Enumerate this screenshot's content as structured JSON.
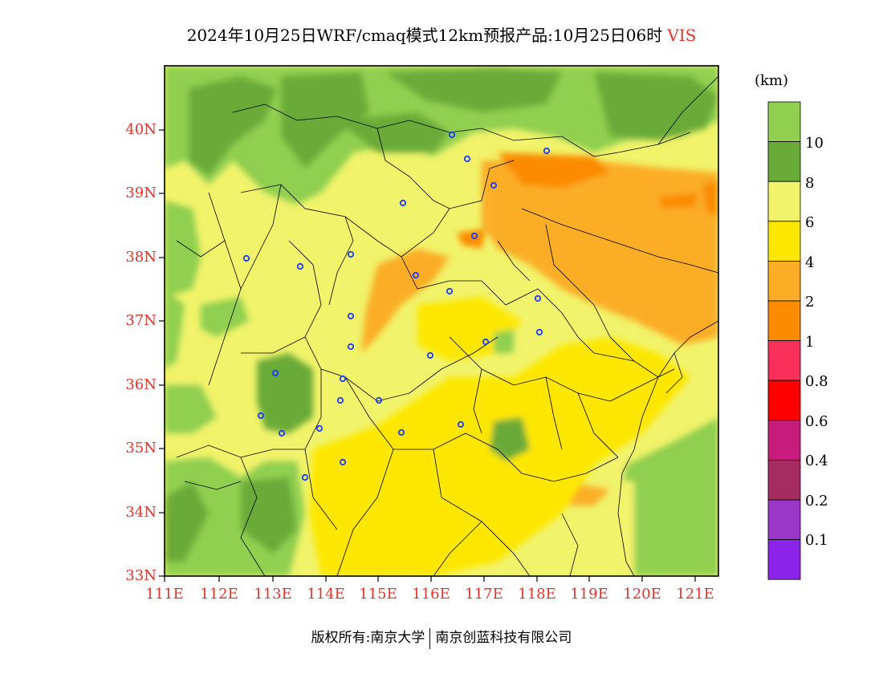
{
  "title": {
    "text": "2024年10月25日WRF/cmaq模式12km预报产品:10月25日06时",
    "variable": "VIS"
  },
  "map": {
    "lat_labels": [
      "40N",
      "39N",
      "38N",
      "37N",
      "36N",
      "35N",
      "34N",
      "33N"
    ],
    "lon_labels": [
      "111E",
      "112E",
      "113E",
      "114E",
      "115E",
      "116E",
      "117E",
      "118E",
      "119E",
      "120E",
      "121E"
    ]
  },
  "colorbar": {
    "unit": "(km)",
    "labels": [
      "10",
      "8",
      "6",
      "4",
      "2",
      "1",
      "0.8",
      "0.6",
      "0.4",
      "0.2",
      "0.1"
    ],
    "colors": [
      "#90cf50",
      "#6aaa38",
      "#f1f36a",
      "#fde700",
      "#fbad26",
      "#fb8b00",
      "#f8305a",
      "#ff0000",
      "#c81c7c",
      "#a42c60",
      "#9b37c8",
      "#8b24e8"
    ]
  },
  "footer": {
    "left": "版权所有:南京大学",
    "right": "南京创蓝科技有限公司"
  }
}
